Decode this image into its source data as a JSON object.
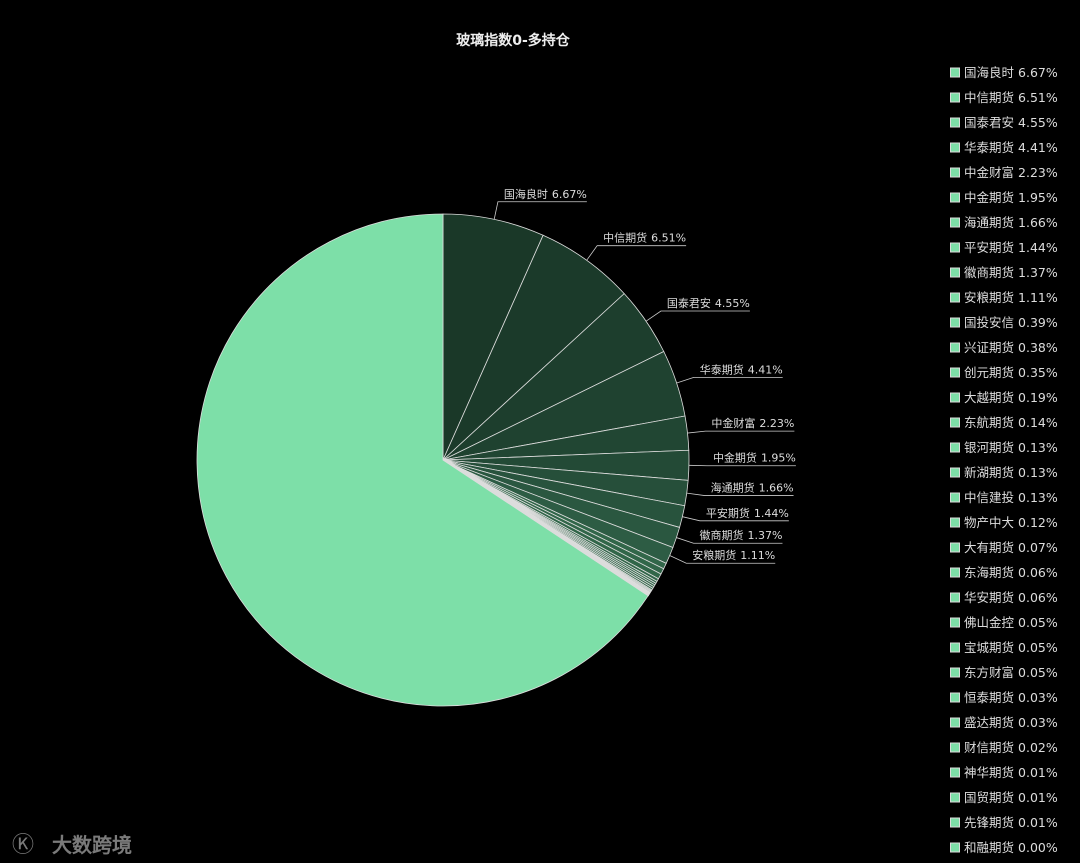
{
  "chart_data": {
    "type": "pie",
    "title": "玻璃指数0-多持仓",
    "watermark": "大数跨境",
    "categories": [
      "国海良时",
      "中信期货",
      "国泰君安",
      "华泰期货",
      "中金财富",
      "中金期货",
      "海通期货",
      "平安期货",
      "徽商期货",
      "安粮期货",
      "国投安信",
      "兴证期货",
      "创元期货",
      "大越期货",
      "东航期货",
      "银河期货",
      "新湖期货",
      "中信建投",
      "物产中大",
      "大有期货",
      "东海期货",
      "华安期货",
      "佛山金控",
      "宝城期货",
      "东方财富",
      "恒泰期货",
      "盛达期货",
      "财信期货",
      "神华期货",
      "国贸期货",
      "先锋期货",
      "和融期货",
      null
    ],
    "values": [
      6.67,
      6.51,
      4.55,
      4.41,
      2.23,
      1.95,
      1.66,
      1.44,
      1.37,
      1.11,
      0.39,
      0.38,
      0.35,
      0.19,
      0.14,
      0.13,
      0.13,
      0.13,
      0.12,
      0.07,
      0.06,
      0.06,
      0.05,
      0.05,
      0.05,
      0.03,
      0.03,
      0.02,
      0.01,
      0.01,
      0.01,
      0.0,
      65.69
    ],
    "value_labels": [
      "6.67%",
      "6.51%",
      "4.55%",
      "4.41%",
      "2.23%",
      "1.95%",
      "1.66%",
      "1.44%",
      "1.37%",
      "1.11%",
      "0.39%",
      "0.38%",
      "0.35%",
      "0.19%",
      "0.14%",
      "0.13%",
      "0.13%",
      "0.13%",
      "0.12%",
      "0.07%",
      "0.06%",
      "0.06%",
      "0.05%",
      "0.05%",
      "0.05%",
      "0.03%",
      "0.03%",
      "0.02%",
      "0.01%",
      "0.01%",
      "0.01%",
      "0.00%",
      null
    ],
    "colors": [
      "#1a3828",
      "#1b3a2a",
      "#1d3e2d",
      "#1f4230",
      "#214633",
      "#234a36",
      "#264f3a",
      "#28533d",
      "#2a5740",
      "#2d5c44",
      "#316649",
      "#316649",
      "#316649",
      "#316649",
      "#316649",
      "#316649",
      "#316649",
      "#316649",
      "#316649",
      "#316649",
      "#316649",
      "#316649",
      "#316649",
      "#316649",
      "#316649",
      "#316649",
      "#316649",
      "#316649",
      "#316649",
      "#316649",
      "#316649",
      "#316649",
      "#7ddfa8"
    ],
    "legend_color": "#7ddfa8",
    "legend": "right"
  }
}
